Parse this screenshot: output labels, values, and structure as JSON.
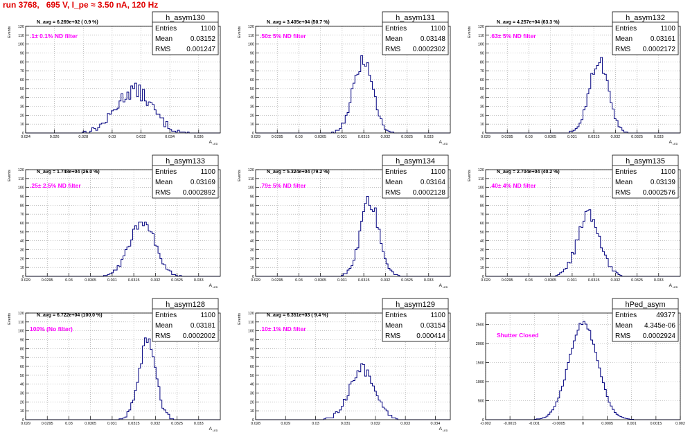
{
  "page_title": "run 3768,   695 V, I_pe ≈ 3.50 nA, 120 Hz",
  "stat_labels": {
    "entries": "Entries",
    "mean": "Mean",
    "rms": "RMS"
  },
  "chart_data": [
    {
      "type": "bar",
      "name": "h_asym130",
      "stats": {
        "entries": "1100",
        "mean": "0.03152",
        "rms": "0.001247"
      },
      "annotation": "N_avg = 6.269e+02 ( 0.9 %)",
      "filter_label": ".1± 0.1% ND filter",
      "ylabel": "Events",
      "xlabel": "A",
      "xlabel_sub": "LED",
      "xlim": [
        0.024,
        0.0375
      ],
      "ylim": [
        0,
        120
      ],
      "xticks": [
        "0.024",
        "0.026",
        "0.028",
        "0.03",
        "0.032",
        "0.034",
        "0.036"
      ],
      "yticks": [
        "0",
        "10",
        "20",
        "30",
        "40",
        "50",
        "60",
        "70",
        "80",
        "90",
        "100",
        "110",
        "120"
      ],
      "grid": true,
      "gauss": {
        "mean": 0.03152,
        "sigma": 0.001247,
        "peak": 48,
        "noise": 9
      },
      "line_color": "#00007f"
    },
    {
      "type": "bar",
      "name": "h_asym131",
      "stats": {
        "entries": "1100",
        "mean": "0.03148",
        "rms": "0.0002302"
      },
      "annotation": "N_avg = 3.405e+04 (50.7 %)",
      "filter_label": ".50± 5% ND filter",
      "ylabel": "Events",
      "xlabel": "A",
      "xlabel_sub": "LED",
      "xlim": [
        0.029,
        0.0335
      ],
      "ylim": [
        0,
        120
      ],
      "xticks": [
        "0.029",
        "0.0295",
        "0.03",
        "0.0305",
        "0.031",
        "0.0315",
        "0.032",
        "0.0325",
        "0.033"
      ],
      "yticks": [
        "0",
        "10",
        "20",
        "30",
        "40",
        "50",
        "60",
        "70",
        "80",
        "90",
        "100",
        "110",
        "120"
      ],
      "grid": true,
      "gauss": {
        "mean": 0.03148,
        "sigma": 0.0002302,
        "peak": 80,
        "noise": 8
      },
      "line_color": "#00007f"
    },
    {
      "type": "bar",
      "name": "h_asym132",
      "stats": {
        "entries": "1100",
        "mean": "0.03161",
        "rms": "0.0002172"
      },
      "annotation": "N_avg = 4.257e+04 (63.3 %)",
      "filter_label": ".63± 5% ND filter",
      "ylabel": "Events",
      "xlabel": "A",
      "xlabel_sub": "LED",
      "xlim": [
        0.029,
        0.0335
      ],
      "ylim": [
        0,
        120
      ],
      "xticks": [
        "0.029",
        "0.0295",
        "0.03",
        "0.0305",
        "0.031",
        "0.0315",
        "0.032",
        "0.0325",
        "0.033"
      ],
      "yticks": [
        "0",
        "10",
        "20",
        "30",
        "40",
        "50",
        "60",
        "70",
        "80",
        "90",
        "100",
        "110",
        "120"
      ],
      "grid": true,
      "gauss": {
        "mean": 0.03161,
        "sigma": 0.0002172,
        "peak": 82,
        "noise": 8
      },
      "line_color": "#00007f"
    },
    {
      "type": "bar",
      "name": "h_asym133",
      "stats": {
        "entries": "1100",
        "mean": "0.03169",
        "rms": "0.0002892"
      },
      "annotation": "N_avg = 1.748e+04 (26.0 %)",
      "filter_label": ".25± 2.5% ND filter",
      "ylabel": "Events",
      "xlabel": "A",
      "xlabel_sub": "LED",
      "xlim": [
        0.029,
        0.0335
      ],
      "ylim": [
        0,
        120
      ],
      "xticks": [
        "0.029",
        "0.0295",
        "0.03",
        "0.0305",
        "0.031",
        "0.0315",
        "0.032",
        "0.0325",
        "0.033"
      ],
      "yticks": [
        "0",
        "10",
        "20",
        "30",
        "40",
        "50",
        "60",
        "70",
        "80",
        "90",
        "100",
        "110",
        "120"
      ],
      "grid": true,
      "gauss": {
        "mean": 0.03169,
        "sigma": 0.0002892,
        "peak": 63,
        "noise": 7
      },
      "line_color": "#00007f"
    },
    {
      "type": "bar",
      "name": "h_asym134",
      "stats": {
        "entries": "1100",
        "mean": "0.03164",
        "rms": "0.0002128"
      },
      "annotation": "N_avg = 5.324e+04 (79.2 %)",
      "filter_label": ".79± 5% ND filter",
      "ylabel": "Events",
      "xlabel": "A",
      "xlabel_sub": "LED",
      "xlim": [
        0.029,
        0.0335
      ],
      "ylim": [
        0,
        120
      ],
      "xticks": [
        "0.029",
        "0.0295",
        "0.03",
        "0.0305",
        "0.031",
        "0.0315",
        "0.032",
        "0.0325",
        "0.033"
      ],
      "yticks": [
        "0",
        "10",
        "20",
        "30",
        "40",
        "50",
        "60",
        "70",
        "80",
        "90",
        "100",
        "110",
        "120"
      ],
      "grid": true,
      "gauss": {
        "mean": 0.03164,
        "sigma": 0.0002128,
        "peak": 84,
        "noise": 9
      },
      "line_color": "#00007f"
    },
    {
      "type": "bar",
      "name": "h_asym135",
      "stats": {
        "entries": "1100",
        "mean": "0.03139",
        "rms": "0.0002576"
      },
      "annotation": "N_avg = 2.704e+04 (40.2 %)",
      "filter_label": ".40± 4% ND filter",
      "ylabel": "Events",
      "xlabel": "A",
      "xlabel_sub": "LED",
      "xlim": [
        0.029,
        0.0335
      ],
      "ylim": [
        0,
        120
      ],
      "xticks": [
        "0.029",
        "0.0295",
        "0.03",
        "0.0305",
        "0.031",
        "0.0315",
        "0.032",
        "0.0325",
        "0.033"
      ],
      "yticks": [
        "0",
        "10",
        "20",
        "30",
        "40",
        "50",
        "60",
        "70",
        "80",
        "90",
        "100",
        "110",
        "120"
      ],
      "grid": true,
      "gauss": {
        "mean": 0.03139,
        "sigma": 0.0002576,
        "peak": 70,
        "noise": 8
      },
      "line_color": "#00007f"
    },
    {
      "type": "bar",
      "name": "h_asym128",
      "stats": {
        "entries": "1100",
        "mean": "0.03181",
        "rms": "0.0002002"
      },
      "annotation": "N_avg = 6.722e+04 (100.0 %)",
      "filter_label": "100% (No filter)",
      "ylabel": "Events",
      "xlabel": "A",
      "xlabel_sub": "LED",
      "xlim": [
        0.029,
        0.0335
      ],
      "ylim": [
        0,
        120
      ],
      "xticks": [
        "0.029",
        "0.0295",
        "0.03",
        "0.0305",
        "0.031",
        "0.0315",
        "0.032",
        "0.0325",
        "0.033"
      ],
      "yticks": [
        "0",
        "10",
        "20",
        "30",
        "40",
        "50",
        "60",
        "70",
        "80",
        "90",
        "100",
        "110",
        "120"
      ],
      "grid": true,
      "gauss": {
        "mean": 0.03181,
        "sigma": 0.0002002,
        "peak": 88,
        "noise": 9
      },
      "line_color": "#00007f"
    },
    {
      "type": "bar",
      "name": "h_asym129",
      "stats": {
        "entries": "1100",
        "mean": "0.03154",
        "rms": "0.000414"
      },
      "annotation": "N_avg = 6.351e+03 ( 9.4 %)",
      "filter_label": ".10± 1% ND filter",
      "ylabel": "Events",
      "xlabel": "A",
      "xlabel_sub": "LED",
      "xlim": [
        0.028,
        0.0345
      ],
      "ylim": [
        0,
        120
      ],
      "xticks": [
        "0.028",
        "0.029",
        "0.03",
        "0.031",
        "0.032",
        "0.033",
        "0.034"
      ],
      "yticks": [
        "0",
        "10",
        "20",
        "30",
        "40",
        "50",
        "60",
        "70",
        "80",
        "90",
        "100",
        "110",
        "120"
      ],
      "grid": true,
      "gauss": {
        "mean": 0.03154,
        "sigma": 0.000414,
        "peak": 58,
        "noise": 7
      },
      "line_color": "#00007f"
    },
    {
      "type": "bar",
      "name": "hPed_asym",
      "stats": {
        "entries": "49377",
        "mean": "4.345e-06",
        "rms": "0.0002924"
      },
      "annotation": "",
      "filter_label": "Shutter Closed",
      "ylabel": "",
      "xlabel": "",
      "xlabel_sub": "",
      "xlim": [
        -0.002,
        0.002
      ],
      "ylim": [
        0,
        2800
      ],
      "xticks": [
        "-0.002",
        "-0.0015",
        "-0.001",
        "-0.0005",
        "0",
        "0.0005",
        "0.001",
        "0.0015",
        "0.002"
      ],
      "yticks": [
        "0",
        "500",
        "1000",
        "1500",
        "2000",
        "2500"
      ],
      "grid": true,
      "gauss": {
        "mean": 4.3e-06,
        "sigma": 0.0002924,
        "peak": 2560,
        "noise": 60
      },
      "line_color": "#00007f"
    }
  ]
}
